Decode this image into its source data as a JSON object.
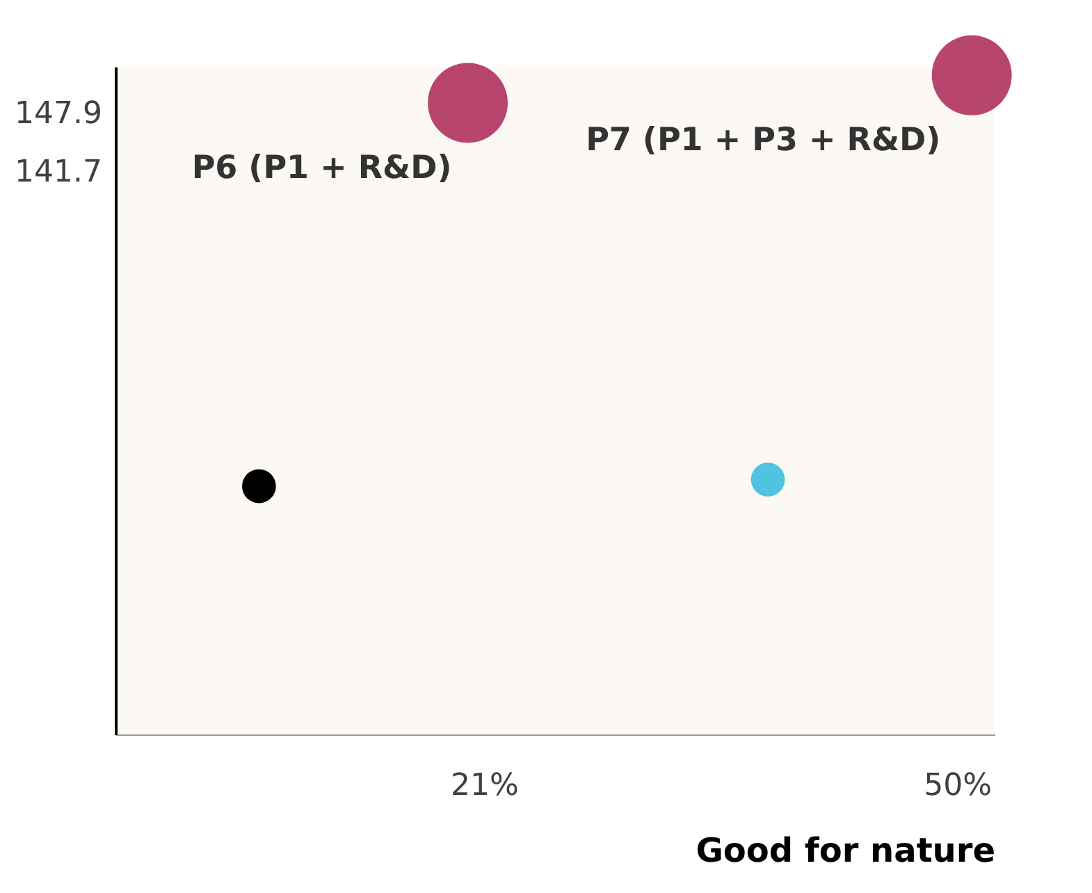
{
  "chart_data": {
    "type": "bubble",
    "xlabel": "Good for nature",
    "x": [
      7.2,
      38.4,
      20.0,
      50.9
    ],
    "values": [
      108.6,
      109.3,
      148.9,
      151.8
    ],
    "sizes": [
      0.18,
      0.18,
      1,
      1
    ],
    "colors": [
      "#000000",
      "#4fc3e0",
      "#b8456e",
      "#b8456e"
    ],
    "xlim": [
      -1.6,
      52.3
    ],
    "ylim": [
      82.5,
      152.7
    ],
    "xticks": [
      {
        "value": 21,
        "label": "21%"
      },
      {
        "value": 50,
        "label": "50%"
      }
    ],
    "yticks": [
      147.9,
      141.7
    ],
    "annotations": [
      {
        "text": "P6 (P1 + R&D)",
        "x": 20.0,
        "y": 148.9
      },
      {
        "text": "P7 (P1 + P3 + R&D)",
        "x": 50.9,
        "y": 151.8
      }
    ],
    "grid": false,
    "legend": false
  }
}
